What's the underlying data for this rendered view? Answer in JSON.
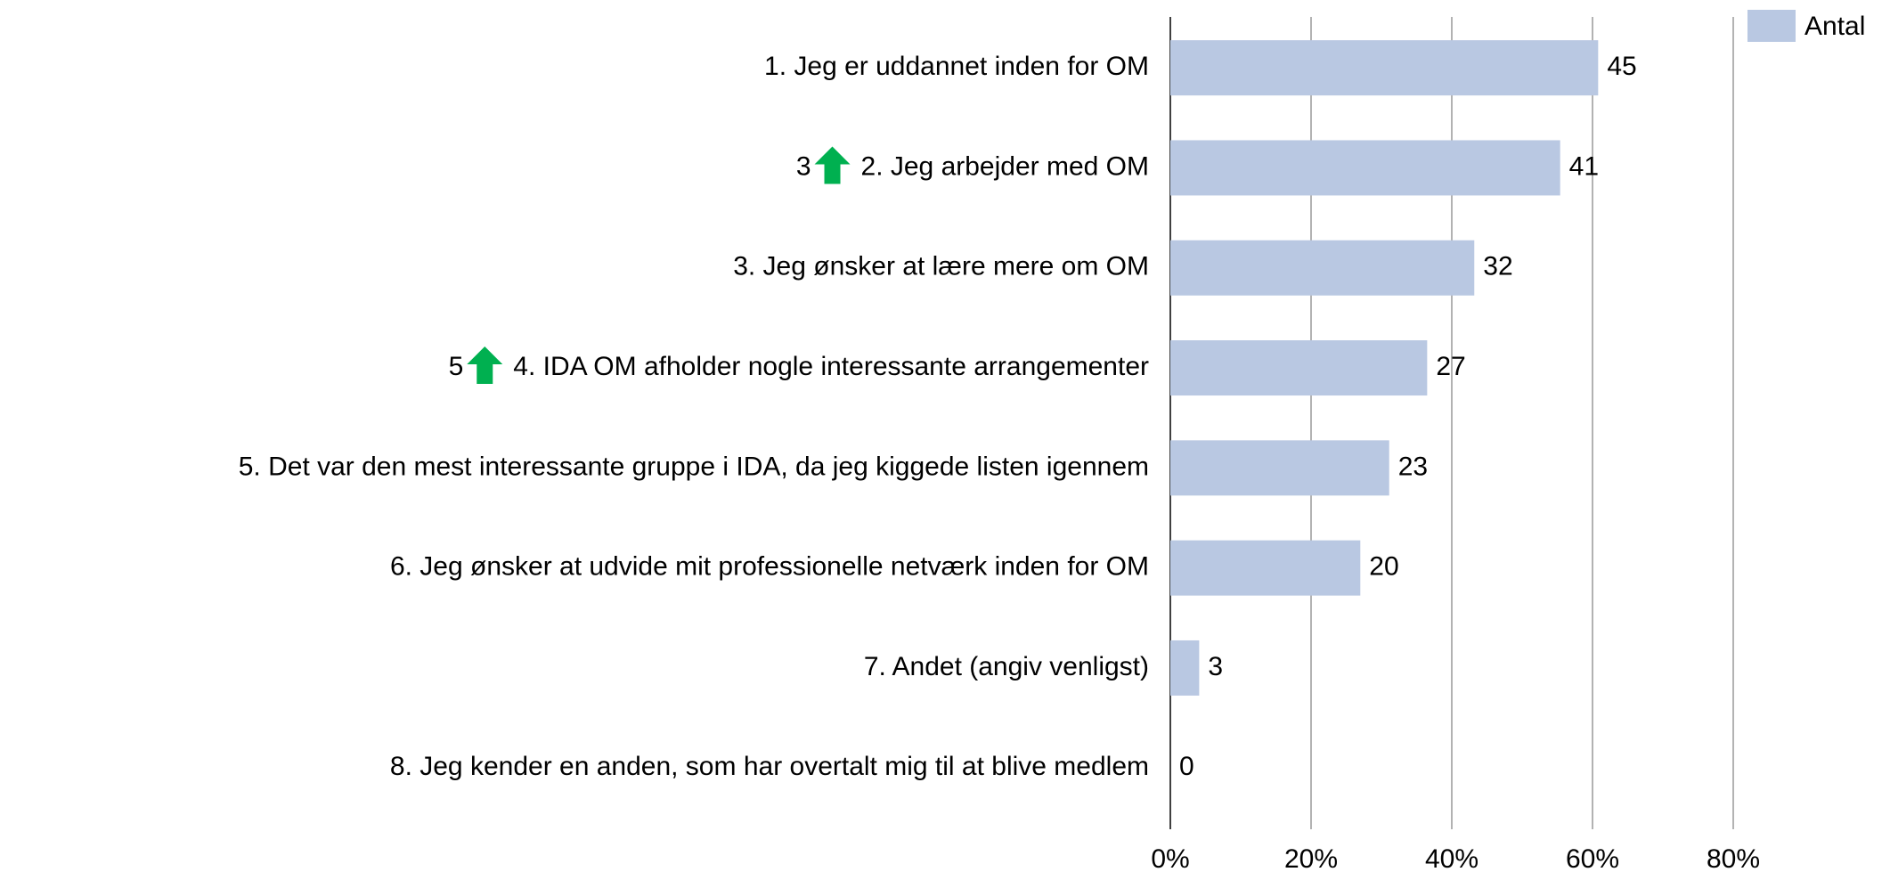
{
  "chart_data": {
    "type": "bar",
    "orientation": "horizontal",
    "categories": [
      "1. Jeg er uddannet inden for OM",
      "2. Jeg arbejder med OM",
      "3. Jeg ønsker at lære mere om OM",
      "4. IDA OM afholder nogle interessante arrangementer",
      "5. Det var den mest interessante gruppe i IDA, da jeg kiggede listen igennem",
      "6. Jeg ønsker at udvide mit professionelle netværk inden for OM",
      "7. Andet (angiv venligst)",
      "8. Jeg kender en anden, som har overtalt mig til at blive medlem"
    ],
    "series": [
      {
        "name": "Antal",
        "color": "#b9c8e2",
        "values": [
          60.8,
          55.4,
          43.2,
          36.5,
          31.1,
          27.0,
          4.1,
          0
        ],
        "value_labels": [
          "45",
          "41",
          "32",
          "27",
          "23",
          "20",
          "3",
          "0"
        ]
      }
    ],
    "rank_changes": [
      null,
      "3",
      null,
      "5",
      null,
      null,
      null,
      null
    ],
    "xlim": [
      0,
      80
    ],
    "xticks": [
      {
        "value": 0,
        "label": "0%"
      },
      {
        "value": 20,
        "label": "20%"
      },
      {
        "value": 40,
        "label": "40%"
      },
      {
        "value": 60,
        "label": "60%"
      },
      {
        "value": 80,
        "label": "80%"
      }
    ],
    "grid": true,
    "legend": "top-right"
  }
}
